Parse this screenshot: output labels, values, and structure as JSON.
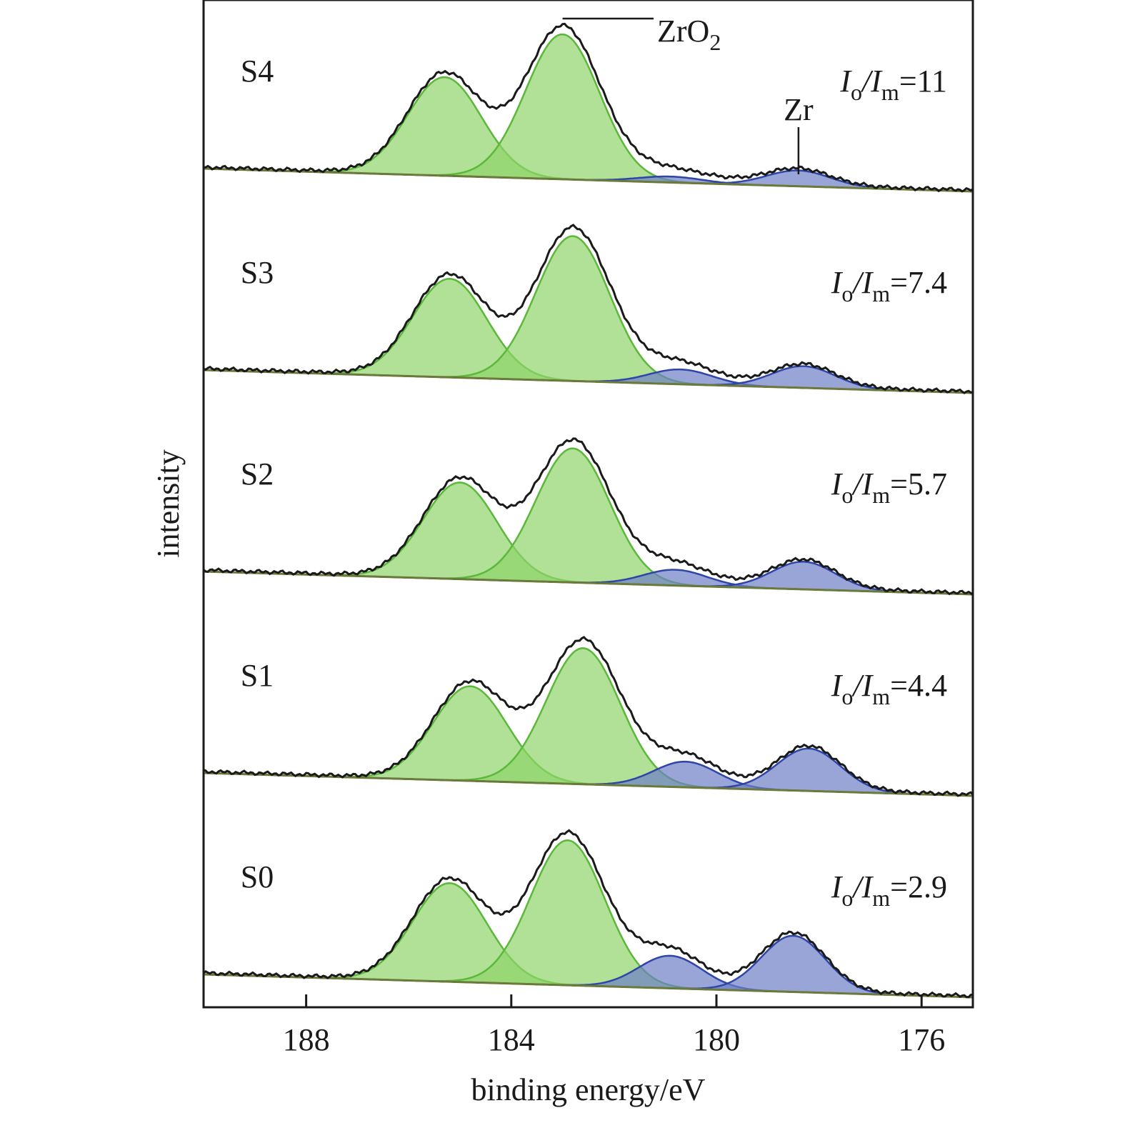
{
  "chart_data": {
    "type": "line",
    "xlabel": "binding energy/eV",
    "ylabel": "intensity",
    "x_reversed": true,
    "xlim": [
      190.0,
      175.0
    ],
    "x_ticks": [
      188,
      184,
      180,
      176
    ],
    "y_ticks_shown": false,
    "grid": false,
    "legend": "none",
    "annotations": [
      {
        "text": "ZrO",
        "subscript": "2",
        "points_to_x": 183.0,
        "panel": "S4"
      },
      {
        "text": "Zr",
        "points_to_x": 178.4,
        "panel": "S4"
      }
    ],
    "components_legend": {
      "ZrO2": "green",
      "Zr": "blue"
    },
    "colors": {
      "measured": "#1a1a1a",
      "zro2_fill": "#8fd46a",
      "zro2_line": "#5cb83a",
      "zr_fill": "#6d7fc6",
      "zr_line": "#2f45a8",
      "baseline": "#6b7a3a"
    },
    "series": [
      {
        "name": "S0",
        "ratio_prefix": "I",
        "ratio_sub1": "o",
        "ratio_mid": "/I",
        "ratio_sub2": "m",
        "ratio_value": "=2.9",
        "peaks": [
          {
            "component": "ZrO2",
            "center_eV": 185.2,
            "height": 1.0
          },
          {
            "component": "ZrO2",
            "center_eV": 182.9,
            "height": 1.47
          },
          {
            "component": "Zr",
            "center_eV": 180.9,
            "height": 0.33
          },
          {
            "component": "Zr",
            "center_eV": 178.5,
            "height": 0.57
          }
        ]
      },
      {
        "name": "S1",
        "ratio_prefix": "I",
        "ratio_sub1": "o",
        "ratio_mid": "/I",
        "ratio_sub2": "m",
        "ratio_value": "=4.4",
        "peaks": [
          {
            "component": "ZrO2",
            "center_eV": 184.8,
            "height": 0.96
          },
          {
            "component": "ZrO2",
            "center_eV": 182.6,
            "height": 1.38
          },
          {
            "component": "Zr",
            "center_eV": 180.6,
            "height": 0.26
          },
          {
            "component": "Zr",
            "center_eV": 178.2,
            "height": 0.43
          }
        ]
      },
      {
        "name": "S2",
        "ratio_prefix": "I",
        "ratio_sub1": "o",
        "ratio_mid": "/I",
        "ratio_sub2": "m",
        "ratio_value": "=5.7",
        "peaks": [
          {
            "component": "ZrO2",
            "center_eV": 185.0,
            "height": 0.98
          },
          {
            "component": "ZrO2",
            "center_eV": 182.8,
            "height": 1.36
          },
          {
            "component": "Zr",
            "center_eV": 180.8,
            "height": 0.16
          },
          {
            "component": "Zr",
            "center_eV": 178.3,
            "height": 0.28
          }
        ]
      },
      {
        "name": "S3",
        "ratio_prefix": "I",
        "ratio_sub1": "o",
        "ratio_mid": "/I",
        "ratio_sub2": "m",
        "ratio_value": "=7.4",
        "peaks": [
          {
            "component": "ZrO2",
            "center_eV": 185.2,
            "height": 1.0
          },
          {
            "component": "ZrO2",
            "center_eV": 182.8,
            "height": 1.47
          },
          {
            "component": "Zr",
            "center_eV": 180.7,
            "height": 0.15
          },
          {
            "component": "Zr",
            "center_eV": 178.3,
            "height": 0.22
          }
        ]
      },
      {
        "name": "S4",
        "ratio_prefix": "I",
        "ratio_sub1": "o",
        "ratio_mid": "/I",
        "ratio_sub2": "m",
        "ratio_value": "=11",
        "peaks": [
          {
            "component": "ZrO2",
            "center_eV": 185.3,
            "height": 1.0
          },
          {
            "component": "ZrO2",
            "center_eV": 183.0,
            "height": 1.47
          },
          {
            "component": "Zr",
            "center_eV": 180.9,
            "height": 0.06
          },
          {
            "component": "Zr",
            "center_eV": 178.4,
            "height": 0.16
          }
        ]
      }
    ]
  }
}
